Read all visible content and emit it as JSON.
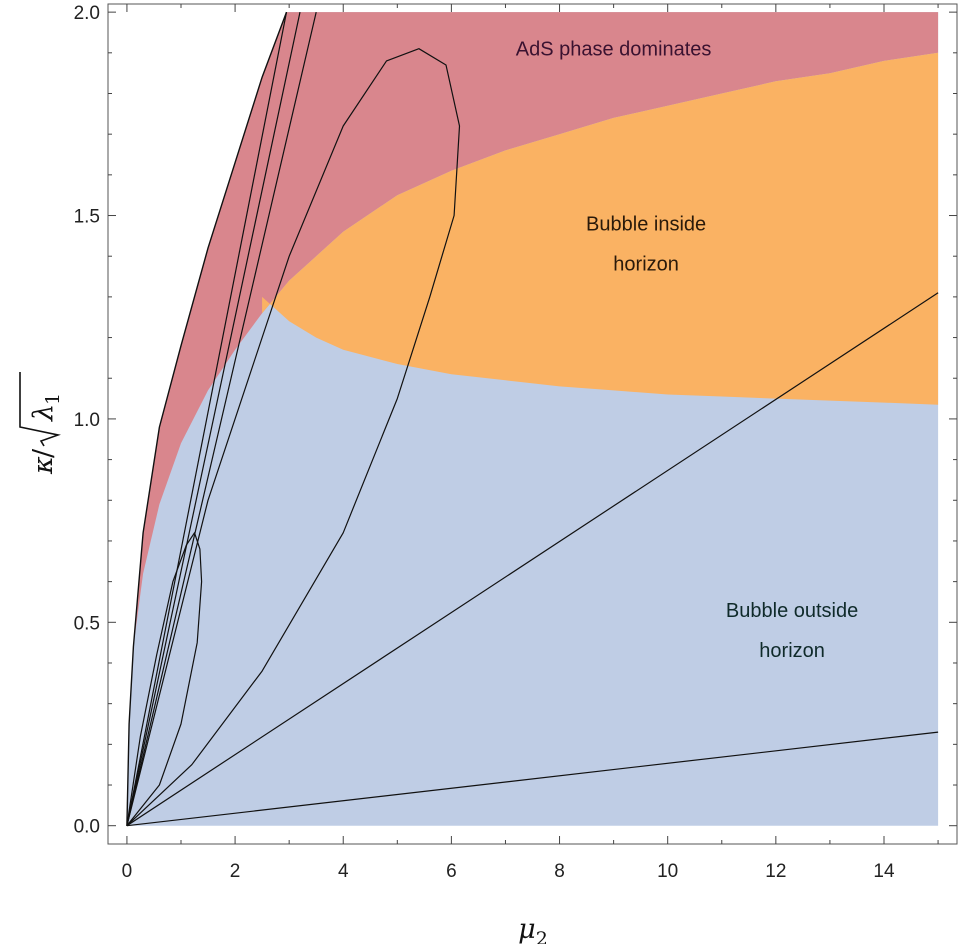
{
  "chart_data": {
    "type": "area",
    "title": "",
    "xlabel": "μ2",
    "ylabel": "κ/√λ1",
    "xlabel_parts": {
      "symbol": "μ",
      "sub": "2"
    },
    "ylabel_parts": {
      "kappa": "κ",
      "slash": "/",
      "radicand": "λ",
      "sub": "1"
    },
    "xlim": [
      -0.35,
      15.35
    ],
    "ylim": [
      -0.045,
      2.02
    ],
    "xticks": [
      0,
      2,
      4,
      6,
      8,
      10,
      12,
      14
    ],
    "xtick_labels": [
      "0",
      "2",
      "4",
      "6",
      "8",
      "10",
      "12",
      "14"
    ],
    "yticks": [
      0.0,
      0.5,
      1.0,
      1.5,
      2.0
    ],
    "ytick_labels": [
      "0.0",
      "0.5",
      "1.0",
      "1.5",
      "2.0"
    ],
    "grid": false,
    "colors": {
      "ads": "#d9868d",
      "inside": "#fab263",
      "outside": "#bfcde5",
      "curve": "#111111"
    },
    "regions": [
      {
        "name": "AdS phase dominates",
        "color": "#d9868d",
        "label_pos": [
          9.0,
          1.91
        ],
        "label_color": "#3a1230",
        "boundary": [
          [
            0.12,
            0.44
          ],
          [
            0.3,
            0.62
          ],
          [
            0.6,
            0.79
          ],
          [
            1.0,
            0.94
          ],
          [
            1.5,
            1.07
          ],
          [
            2.0,
            1.17
          ],
          [
            2.5,
            1.26
          ],
          [
            3.0,
            1.34
          ],
          [
            3.5,
            1.4
          ],
          [
            4.0,
            1.46
          ],
          [
            5.0,
            1.55
          ],
          [
            6.0,
            1.61
          ],
          [
            7.0,
            1.66
          ],
          [
            8.0,
            1.7
          ],
          [
            9.0,
            1.74
          ],
          [
            10.0,
            1.77
          ],
          [
            11.0,
            1.8
          ],
          [
            12.0,
            1.83
          ],
          [
            13.0,
            1.85
          ],
          [
            14.0,
            1.88
          ],
          [
            15.0,
            1.9
          ]
        ]
      },
      {
        "name_lines": [
          "Bubble inside",
          "horizon"
        ],
        "color": "#fab263",
        "label_pos": [
          9.6,
          1.48
        ],
        "label_color": "#2a1a0a",
        "boundary": [
          [
            2.5,
            1.3
          ],
          [
            3.0,
            1.24
          ],
          [
            3.5,
            1.2
          ],
          [
            4.0,
            1.17
          ],
          [
            5.0,
            1.135
          ],
          [
            6.0,
            1.11
          ],
          [
            7.0,
            1.095
          ],
          [
            8.0,
            1.08
          ],
          [
            9.0,
            1.07
          ],
          [
            10.0,
            1.06
          ],
          [
            11.0,
            1.055
          ],
          [
            12.0,
            1.05
          ],
          [
            13.0,
            1.045
          ],
          [
            14.0,
            1.04
          ],
          [
            15.0,
            1.035
          ]
        ]
      },
      {
        "name_lines": [
          "Bubble outside",
          "horizon"
        ],
        "color": "#bfcde5",
        "label_pos": [
          12.3,
          0.53
        ],
        "label_color": "#0f2a2a"
      }
    ],
    "outer_boundary": [
      [
        0.0,
        0.0
      ],
      [
        0.04,
        0.25
      ],
      [
        0.12,
        0.44
      ],
      [
        0.3,
        0.72
      ],
      [
        0.6,
        0.98
      ],
      [
        1.0,
        1.18
      ],
      [
        1.5,
        1.42
      ],
      [
        2.0,
        1.63
      ],
      [
        2.5,
        1.84
      ],
      [
        2.95,
        2.0
      ]
    ],
    "series": [
      {
        "points": [
          [
            0.0,
            0.0
          ],
          [
            3.5,
            2.0
          ]
        ]
      },
      {
        "points": [
          [
            0.0,
            0.0
          ],
          [
            3.2,
            2.0
          ]
        ]
      },
      {
        "points": [
          [
            0.0,
            0.0
          ],
          [
            2.95,
            2.0
          ]
        ]
      },
      {
        "points": [
          [
            0.0,
            0.0
          ],
          [
            15.0,
            1.31
          ]
        ]
      },
      {
        "points": [
          [
            0.0,
            0.0
          ],
          [
            15.0,
            0.23
          ]
        ]
      },
      {
        "points": [
          [
            0.0,
            0.0
          ],
          [
            0.25,
            0.22
          ],
          [
            0.55,
            0.42
          ],
          [
            0.85,
            0.6
          ],
          [
            1.1,
            0.69
          ],
          [
            1.25,
            0.72
          ],
          [
            1.35,
            0.68
          ],
          [
            1.38,
            0.6
          ],
          [
            1.3,
            0.45
          ],
          [
            1.0,
            0.25
          ],
          [
            0.6,
            0.1
          ],
          [
            0.0,
            0.0
          ]
        ]
      },
      {
        "points": [
          [
            0.0,
            0.0
          ],
          [
            1.5,
            0.8
          ],
          [
            3.0,
            1.4
          ],
          [
            4.0,
            1.72
          ],
          [
            4.8,
            1.88
          ],
          [
            5.4,
            1.91
          ],
          [
            5.9,
            1.87
          ],
          [
            6.15,
            1.72
          ],
          [
            6.05,
            1.5
          ],
          [
            5.6,
            1.3
          ],
          [
            5.0,
            1.05
          ],
          [
            4.0,
            0.72
          ],
          [
            2.5,
            0.38
          ],
          [
            1.2,
            0.15
          ],
          [
            0.0,
            0.0
          ]
        ]
      }
    ]
  }
}
